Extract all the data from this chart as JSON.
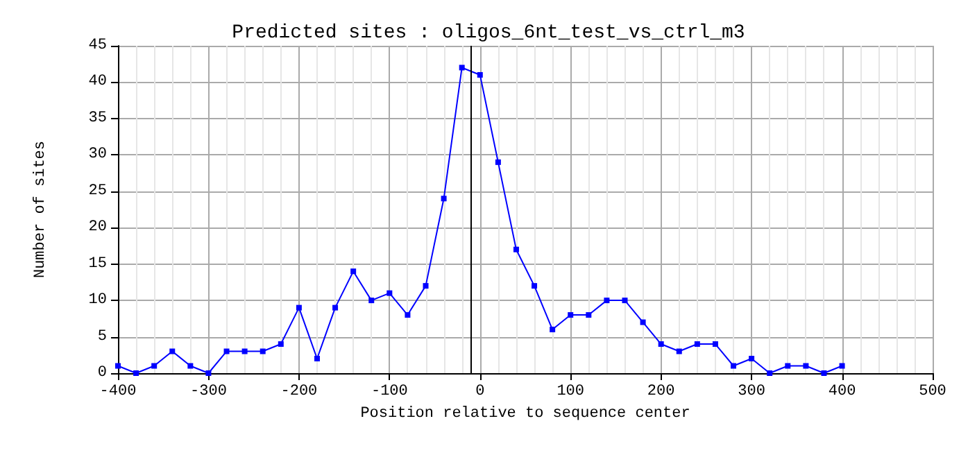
{
  "chart_data": {
    "type": "line",
    "title": "Predicted sites : oligos_6nt_test_vs_ctrl_m3",
    "xlabel": "Position relative to sequence center",
    "ylabel": "Number of sites",
    "x": [
      -400,
      -380,
      -360,
      -340,
      -320,
      -300,
      -280,
      -260,
      -240,
      -220,
      -200,
      -180,
      -160,
      -140,
      -120,
      -100,
      -80,
      -60,
      -40,
      -20,
      0,
      20,
      40,
      60,
      80,
      100,
      120,
      140,
      160,
      180,
      200,
      220,
      240,
      260,
      280,
      300,
      320,
      340,
      360,
      380,
      400
    ],
    "series": [
      {
        "color": "#0000ff",
        "values": [
          1,
          0,
          1,
          3,
          1,
          0,
          3,
          3,
          3,
          4,
          9,
          2,
          9,
          14,
          10,
          11,
          8,
          12,
          24,
          42,
          41,
          29,
          17,
          12,
          6,
          8,
          8,
          10,
          10,
          7,
          4,
          3,
          4,
          4,
          1,
          2,
          0,
          1,
          1,
          0,
          1
        ]
      }
    ],
    "xlim": [
      -400,
      500
    ],
    "xticks": [
      -400,
      -300,
      -200,
      -100,
      0,
      100,
      200,
      300,
      400,
      500
    ],
    "ylim": [
      0,
      45
    ],
    "yticks": [
      0,
      5,
      10,
      15,
      20,
      25,
      30,
      35,
      40,
      45
    ],
    "ref_lines": [
      {
        "axis": "x",
        "value": -10,
        "label": null,
        "color": "#000000"
      }
    ],
    "grid": true,
    "marker": "square",
    "line_style": "solid"
  }
}
